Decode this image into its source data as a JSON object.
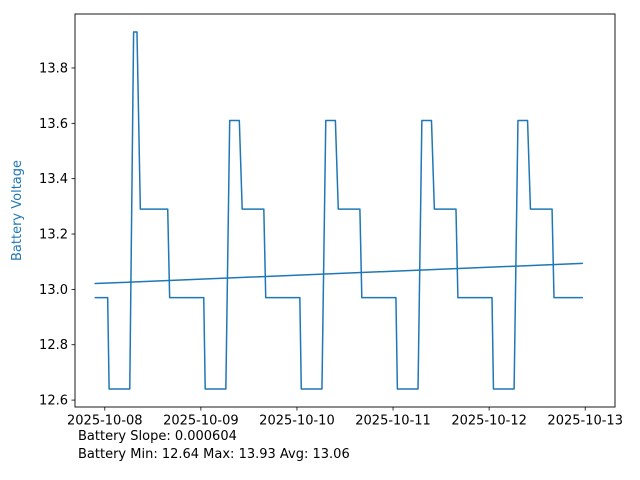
{
  "chart_data": {
    "type": "line",
    "title": "",
    "xlabel": "",
    "ylabel": "Battery Voltage",
    "ylabel_color": "#1f77b4",
    "line_color": "#1f77b4",
    "axis_color": "#000000",
    "tick_label_color": "#000000",
    "xlim": [
      -0.31,
      5.31
    ],
    "ylim": [
      12.575,
      13.995
    ],
    "grid": false,
    "legend": "none",
    "x_unit": "days since 2025-10-08",
    "x_ticks": [
      {
        "v": 0,
        "label": "2025-10-08"
      },
      {
        "v": 1,
        "label": "2025-10-09"
      },
      {
        "v": 2,
        "label": "2025-10-10"
      },
      {
        "v": 3,
        "label": "2025-10-11"
      },
      {
        "v": 4,
        "label": "2025-10-12"
      },
      {
        "v": 5,
        "label": "2025-10-13"
      }
    ],
    "y_ticks": [
      {
        "v": 12.6,
        "label": "12.6"
      },
      {
        "v": 12.8,
        "label": "12.8"
      },
      {
        "v": 13.0,
        "label": "13.0"
      },
      {
        "v": 13.2,
        "label": "13.2"
      },
      {
        "v": 13.4,
        "label": "13.4"
      },
      {
        "v": 13.6,
        "label": "13.6"
      },
      {
        "v": 13.8,
        "label": "13.8"
      }
    ],
    "series": [
      {
        "name": "battery-voltage",
        "color": "#1f77b4",
        "x": [
          -0.1,
          0.03,
          0.045,
          0.26,
          0.3,
          0.335,
          0.37,
          0.655,
          0.675,
          1.03,
          1.045,
          1.26,
          1.3,
          1.4,
          1.43,
          1.655,
          1.675,
          2.03,
          2.045,
          2.26,
          2.3,
          2.4,
          2.43,
          2.655,
          2.675,
          3.03,
          3.045,
          3.26,
          3.3,
          3.4,
          3.43,
          3.655,
          3.675,
          4.03,
          4.045,
          4.26,
          4.3,
          4.4,
          4.43,
          4.655,
          4.675,
          4.97
        ],
        "y": [
          12.97,
          12.97,
          12.64,
          12.64,
          13.93,
          13.93,
          13.29,
          13.29,
          12.97,
          12.97,
          12.64,
          12.64,
          13.61,
          13.61,
          13.29,
          13.29,
          12.97,
          12.97,
          12.64,
          12.64,
          13.61,
          13.61,
          13.29,
          13.29,
          12.97,
          12.97,
          12.64,
          12.64,
          13.61,
          13.61,
          13.29,
          13.29,
          12.97,
          12.97,
          12.64,
          12.64,
          13.61,
          13.61,
          13.29,
          13.29,
          12.97,
          12.97
        ]
      },
      {
        "name": "battery-trend",
        "color": "#1f77b4",
        "x": [
          -0.1,
          4.97
        ],
        "y": [
          13.021,
          13.094
        ]
      }
    ],
    "annotations": [
      "Battery Slope: 0.000604",
      "Battery Min: 12.64 Max: 13.93 Avg: 13.06"
    ],
    "stats": {
      "slope": 0.000604,
      "min": 12.64,
      "max": 13.93,
      "avg": 13.06
    }
  }
}
